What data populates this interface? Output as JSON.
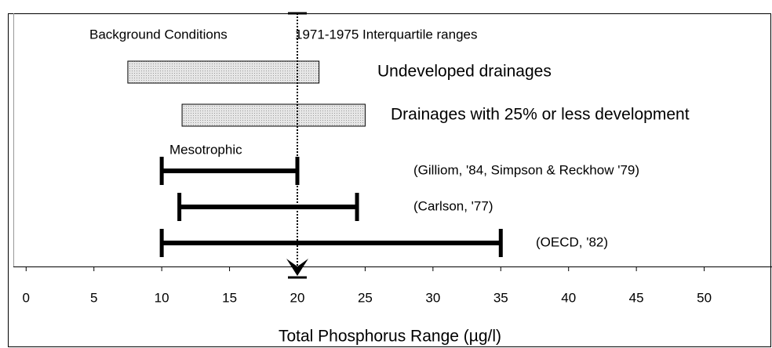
{
  "chart_data": {
    "type": "range",
    "xlabel": "Total Phosphorus Range (µg/l)",
    "annotations": [
      "Background Conditions",
      "1971-1975 Interquartile ranges",
      "Mesotrophic"
    ],
    "reference": 20,
    "ranges": [
      {
        "label": "Undeveloped drainages",
        "low": 7.5,
        "high": 21.6,
        "style": "box"
      },
      {
        "label": "Drainages with 25% or less development",
        "low": 11.5,
        "high": 25,
        "style": "box"
      },
      {
        "label": "(Gilliom, '84, Simpson & Reckhow '79)",
        "low": 10,
        "high": 20,
        "style": "line"
      },
      {
        "label": "(Carlson, '77)",
        "low": 11.3,
        "high": 24.4,
        "style": "line"
      },
      {
        "label": "(OECD, '82)",
        "low": 10,
        "high": 35,
        "style": "line"
      }
    ],
    "box_color": "#d9d9d9",
    "line_color": "#000000",
    "xlim": [
      -1,
      55
    ],
    "xticks": [
      0,
      5,
      10,
      15,
      20,
      25,
      30,
      35,
      40,
      45,
      50
    ]
  }
}
